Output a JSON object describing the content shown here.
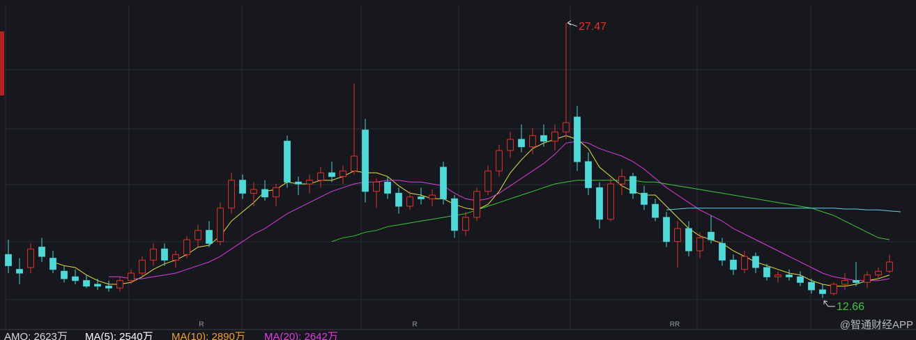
{
  "chart_data": {
    "type": "candlestick",
    "up_color": "#e8302a",
    "down_color": "#4fd8d8",
    "ylim": [
      11,
      28.4
    ],
    "grid": true,
    "open": [
      15.0,
      14.2,
      14.3,
      15.4,
      14.8,
      14.1,
      13.8,
      13.6,
      13.4,
      13.3,
      13.2,
      13.6,
      14.0,
      14.7,
      15.3,
      14.7,
      15.0,
      15.8,
      16.3,
      15.7,
      17.5,
      19.0,
      18.3,
      18.5,
      18.1,
      21.1,
      18.9,
      18.8,
      19.0,
      19.4,
      19.2,
      19.5,
      21.7,
      18.4,
      18.9,
      18.3,
      17.6,
      18.1,
      18.0,
      19.7,
      18.0,
      16.3,
      17.0,
      18.4,
      19.5,
      20.6,
      21.2,
      20.8,
      21.4,
      21.1,
      21.6,
      22.4,
      20.0,
      18.6,
      16.9,
      18.8,
      19.2,
      18.3,
      17.7,
      17.0,
      15.7,
      16.4,
      15.2,
      16.2,
      15.6,
      14.7,
      14.2,
      14.9,
      14.3,
      13.8,
      13.9,
      13.8,
      13.5,
      13.1,
      12.9,
      13.4,
      13.6,
      13.5,
      13.9,
      14.1
    ],
    "high": [
      15.8,
      14.8,
      15.6,
      15.9,
      15.2,
      14.4,
      14.2,
      13.9,
      13.7,
      13.6,
      13.8,
      14.2,
      14.9,
      15.6,
      15.6,
      15.2,
      16.0,
      16.6,
      16.8,
      17.8,
      19.4,
      19.3,
      18.9,
      19.0,
      18.8,
      21.4,
      19.2,
      19.3,
      19.7,
      20.0,
      19.8,
      24.2,
      22.3,
      19.1,
      19.2,
      18.6,
      18.4,
      18.6,
      18.5,
      20.0,
      18.2,
      17.3,
      18.6,
      19.8,
      20.9,
      21.6,
      22.0,
      21.8,
      22.0,
      22.0,
      27.47,
      23.0,
      20.5,
      18.9,
      19.1,
      19.6,
      19.4,
      18.7,
      18.0,
      17.3,
      16.8,
      16.8,
      16.2,
      17.1,
      15.9,
      15.0,
      15.2,
      15.1,
      14.5,
      14.1,
      14.2,
      14.1,
      13.7,
      13.4,
      13.5,
      14.0,
      14.6,
      14.1,
      14.3,
      15.0
    ],
    "low": [
      14.0,
      13.4,
      14.0,
      14.6,
      14.0,
      13.5,
      13.4,
      13.2,
      13.1,
      13.0,
      13.0,
      13.4,
      13.8,
      14.4,
      14.4,
      14.3,
      14.8,
      15.4,
      15.4,
      15.5,
      17.2,
      18.0,
      17.6,
      17.9,
      17.6,
      18.6,
      18.2,
      18.3,
      18.6,
      18.9,
      18.8,
      19.3,
      17.8,
      17.5,
      18.0,
      17.2,
      17.4,
      17.7,
      17.6,
      17.7,
      15.9,
      16.0,
      16.8,
      18.2,
      19.2,
      20.2,
      20.5,
      20.4,
      20.8,
      20.6,
      21.2,
      19.5,
      18.2,
      16.4,
      16.8,
      18.2,
      18.0,
      17.4,
      16.8,
      15.4,
      14.3,
      14.9,
      14.8,
      15.6,
      14.4,
      13.9,
      14.0,
      14.0,
      13.6,
      13.5,
      13.6,
      13.3,
      12.9,
      12.66,
      12.8,
      13.1,
      13.3,
      13.2,
      13.7,
      14.0
    ],
    "close": [
      14.4,
      14.0,
      15.3,
      14.9,
      14.2,
      13.7,
      13.6,
      13.3,
      13.3,
      13.2,
      13.6,
      14.0,
      14.7,
      15.3,
      14.7,
      15.0,
      15.8,
      16.3,
      15.6,
      17.5,
      19.0,
      18.3,
      18.5,
      18.1,
      18.6,
      18.9,
      18.8,
      19.0,
      19.4,
      19.2,
      19.5,
      20.3,
      18.4,
      18.9,
      18.3,
      17.6,
      18.1,
      18.0,
      18.2,
      18.0,
      16.3,
      17.0,
      18.4,
      19.5,
      20.6,
      21.2,
      20.8,
      21.4,
      21.1,
      21.6,
      22.1,
      20.0,
      18.6,
      16.9,
      18.8,
      19.2,
      18.3,
      17.7,
      17.0,
      15.7,
      16.4,
      15.2,
      15.9,
      15.8,
      14.7,
      14.2,
      14.9,
      14.3,
      13.8,
      13.9,
      13.8,
      13.5,
      13.1,
      12.9,
      13.4,
      13.6,
      13.5,
      13.9,
      14.1,
      14.6
    ],
    "overlays": [
      {
        "color": "#e6e04a",
        "values": [
          null,
          null,
          null,
          null,
          14.6,
          14.4,
          14.3,
          13.9,
          13.6,
          13.4,
          13.4,
          13.5,
          13.8,
          14.2,
          14.5,
          14.7,
          15.0,
          15.4,
          15.5,
          16.0,
          16.8,
          17.3,
          17.8,
          18.4,
          18.5,
          18.9,
          18.8,
          18.8,
          19.0,
          19.0,
          19.2,
          19.5,
          19.4,
          19.4,
          19.2,
          18.7,
          18.3,
          18.2,
          18.0,
          18.0,
          17.7,
          17.5,
          17.4,
          17.7,
          18.4,
          19.4,
          20.1,
          20.7,
          21.0,
          21.2,
          21.4,
          21.2,
          20.7,
          19.7,
          19.2,
          18.7,
          18.4,
          18.2,
          18.2,
          17.6,
          17.0,
          16.4,
          16.0,
          15.8,
          15.6,
          15.2,
          14.9,
          14.6,
          14.4,
          14.2,
          14.0,
          13.9,
          13.6,
          13.4,
          13.3,
          13.3,
          13.4,
          13.6,
          13.7,
          13.9
        ]
      },
      {
        "color": "#e03ce0",
        "values": [
          null,
          null,
          null,
          null,
          null,
          null,
          null,
          null,
          null,
          13.8,
          13.8,
          13.7,
          13.7,
          13.8,
          13.9,
          14.0,
          14.2,
          14.4,
          14.6,
          14.9,
          15.3,
          15.7,
          16.1,
          16.4,
          16.8,
          17.2,
          17.5,
          17.8,
          18.1,
          18.4,
          18.6,
          18.8,
          18.9,
          18.9,
          19.0,
          19.0,
          18.9,
          18.9,
          18.8,
          18.7,
          18.3,
          18.0,
          17.9,
          18.0,
          18.3,
          18.7,
          19.1,
          19.5,
          19.9,
          20.4,
          21.0,
          21.1,
          21.0,
          20.7,
          20.5,
          20.3,
          20.0,
          19.6,
          19.1,
          18.6,
          18.2,
          17.8,
          17.4,
          17.1,
          16.8,
          16.4,
          16.1,
          15.8,
          15.5,
          15.2,
          14.9,
          14.6,
          14.3,
          14.0,
          13.8,
          13.7,
          13.6,
          13.6,
          13.6,
          13.7
        ]
      },
      {
        "color": "#3cc83c",
        "values": [
          null,
          null,
          null,
          null,
          null,
          null,
          null,
          null,
          null,
          null,
          null,
          null,
          null,
          null,
          null,
          null,
          null,
          null,
          null,
          null,
          null,
          null,
          null,
          null,
          null,
          null,
          null,
          null,
          null,
          15.7,
          15.9,
          16.0,
          16.2,
          16.3,
          16.5,
          16.6,
          16.7,
          16.8,
          16.9,
          17.0,
          17.1,
          17.2,
          17.4,
          17.6,
          17.8,
          18.0,
          18.2,
          18.4,
          18.6,
          18.8,
          18.9,
          19.0,
          19.0,
          19.0,
          19.0,
          19.0,
          19.0,
          18.9,
          18.9,
          18.8,
          18.7,
          18.6,
          18.5,
          18.4,
          18.3,
          18.2,
          18.1,
          18.0,
          17.9,
          17.8,
          17.7,
          17.6,
          17.5,
          17.3,
          17.1,
          16.8,
          16.5,
          16.2,
          15.9,
          15.8
        ]
      },
      {
        "color": "#5fd4e8",
        "values": [
          null,
          null,
          null,
          null,
          null,
          null,
          null,
          null,
          null,
          null,
          null,
          null,
          null,
          null,
          null,
          null,
          null,
          null,
          null,
          null,
          null,
          null,
          null,
          null,
          null,
          null,
          null,
          null,
          null,
          null,
          null,
          null,
          null,
          null,
          null,
          null,
          null,
          null,
          null,
          null,
          null,
          null,
          null,
          null,
          null,
          null,
          null,
          null,
          null,
          null,
          null,
          null,
          null,
          null,
          null,
          null,
          null,
          null,
          null,
          17.4,
          17.45,
          17.5,
          17.5,
          17.5,
          17.5,
          17.5,
          17.5,
          17.5,
          17.5,
          17.5,
          17.5,
          17.5,
          17.5,
          17.5,
          17.5,
          17.45,
          17.45,
          17.4,
          17.4,
          17.35,
          17.3
        ]
      }
    ],
    "markers": [
      "R",
      "R",
      "RR"
    ]
  },
  "indicator_bar": [
    "AMO: 2623万",
    "MA(5): 2540万",
    "MA(10): 2890万",
    "MA(20): 2642万"
  ],
  "watermark": "@智通财经APP"
}
